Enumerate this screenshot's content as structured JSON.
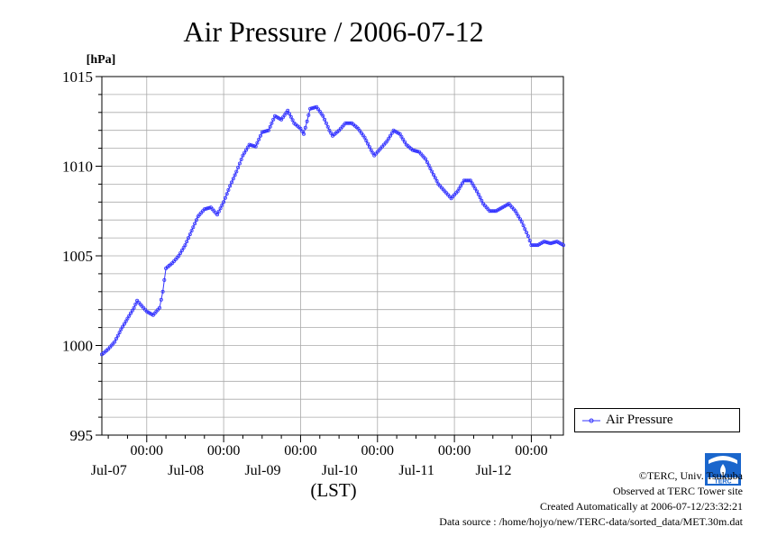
{
  "chart_data": {
    "type": "line",
    "title": "Air Pressure / 2006-07-12",
    "ylabel": "[hPa]",
    "xlabel": "(LST)",
    "ylim": [
      995,
      1015
    ],
    "yticks": [
      995,
      1000,
      1005,
      1010,
      1015
    ],
    "xlim": [
      "2006-07-06 10:00",
      "2006-07-12 10:00"
    ],
    "xticks": [
      {
        "time": "00:00",
        "date": "Jul-07"
      },
      {
        "time": "00:00",
        "date": "Jul-08"
      },
      {
        "time": "00:00",
        "date": "Jul-09"
      },
      {
        "time": "00:00",
        "date": "Jul-10"
      },
      {
        "time": "00:00",
        "date": "Jul-11"
      },
      {
        "time": "00:00",
        "date": "Jul-12"
      }
    ],
    "grid": true,
    "legend_position": "bottom-right, outside plot",
    "series": [
      {
        "name": "Air Pressure",
        "color": "#3333ff",
        "points": [
          [
            "2006-07-06 10:00",
            999.5
          ],
          [
            "2006-07-06 12:00",
            999.8
          ],
          [
            "2006-07-06 14:00",
            1000.2
          ],
          [
            "2006-07-06 16:00",
            1000.9
          ],
          [
            "2006-07-06 18:00",
            1001.5
          ],
          [
            "2006-07-06 20:00",
            1002.1
          ],
          [
            "2006-07-06 21:00",
            1002.5
          ],
          [
            "2006-07-06 22:00",
            1002.3
          ],
          [
            "2006-07-07 00:00",
            1001.9
          ],
          [
            "2006-07-07 02:00",
            1001.7
          ],
          [
            "2006-07-07 04:00",
            1002.1
          ],
          [
            "2006-07-07 05:00",
            1003.0
          ],
          [
            "2006-07-07 06:00",
            1004.3
          ],
          [
            "2006-07-07 08:00",
            1004.6
          ],
          [
            "2006-07-07 10:00",
            1005.0
          ],
          [
            "2006-07-07 12:00",
            1005.6
          ],
          [
            "2006-07-07 14:00",
            1006.4
          ],
          [
            "2006-07-07 16:00",
            1007.2
          ],
          [
            "2006-07-07 18:00",
            1007.6
          ],
          [
            "2006-07-07 20:00",
            1007.7
          ],
          [
            "2006-07-07 22:00",
            1007.3
          ],
          [
            "2006-07-08 00:00",
            1008.0
          ],
          [
            "2006-07-08 02:00",
            1008.9
          ],
          [
            "2006-07-08 04:00",
            1009.7
          ],
          [
            "2006-07-08 06:00",
            1010.6
          ],
          [
            "2006-07-08 08:00",
            1011.2
          ],
          [
            "2006-07-08 10:00",
            1011.1
          ],
          [
            "2006-07-08 12:00",
            1011.9
          ],
          [
            "2006-07-08 14:00",
            1012.0
          ],
          [
            "2006-07-08 16:00",
            1012.8
          ],
          [
            "2006-07-08 18:00",
            1012.6
          ],
          [
            "2006-07-08 20:00",
            1013.1
          ],
          [
            "2006-07-08 22:00",
            1012.4
          ],
          [
            "2006-07-09 00:00",
            1012.1
          ],
          [
            "2006-07-09 01:00",
            1011.8
          ],
          [
            "2006-07-09 02:00",
            1012.5
          ],
          [
            "2006-07-09 03:00",
            1013.2
          ],
          [
            "2006-07-09 05:00",
            1013.3
          ],
          [
            "2006-07-09 07:00",
            1012.8
          ],
          [
            "2006-07-09 09:00",
            1012.0
          ],
          [
            "2006-07-09 10:00",
            1011.7
          ],
          [
            "2006-07-09 12:00",
            1012.0
          ],
          [
            "2006-07-09 14:00",
            1012.4
          ],
          [
            "2006-07-09 16:00",
            1012.4
          ],
          [
            "2006-07-09 18:00",
            1012.1
          ],
          [
            "2006-07-09 20:00",
            1011.6
          ],
          [
            "2006-07-09 22:00",
            1010.9
          ],
          [
            "2006-07-09 23:00",
            1010.6
          ],
          [
            "2006-07-10 01:00",
            1011.0
          ],
          [
            "2006-07-10 03:00",
            1011.4
          ],
          [
            "2006-07-10 05:00",
            1012.0
          ],
          [
            "2006-07-10 07:00",
            1011.8
          ],
          [
            "2006-07-10 09:00",
            1011.2
          ],
          [
            "2006-07-10 11:00",
            1010.9
          ],
          [
            "2006-07-10 13:00",
            1010.8
          ],
          [
            "2006-07-10 15:00",
            1010.4
          ],
          [
            "2006-07-10 17:00",
            1009.7
          ],
          [
            "2006-07-10 19:00",
            1009.0
          ],
          [
            "2006-07-10 21:00",
            1008.6
          ],
          [
            "2006-07-10 23:00",
            1008.2
          ],
          [
            "2006-07-11 01:00",
            1008.6
          ],
          [
            "2006-07-11 03:00",
            1009.2
          ],
          [
            "2006-07-11 05:00",
            1009.2
          ],
          [
            "2006-07-11 07:00",
            1008.6
          ],
          [
            "2006-07-11 09:00",
            1007.9
          ],
          [
            "2006-07-11 11:00",
            1007.5
          ],
          [
            "2006-07-11 13:00",
            1007.5
          ],
          [
            "2006-07-11 15:00",
            1007.7
          ],
          [
            "2006-07-11 17:00",
            1007.9
          ],
          [
            "2006-07-11 19:00",
            1007.5
          ],
          [
            "2006-07-11 21:00",
            1006.9
          ],
          [
            "2006-07-11 23:00",
            1006.1
          ],
          [
            "2006-07-12 00:00",
            1005.6
          ],
          [
            "2006-07-12 02:00",
            1005.6
          ],
          [
            "2006-07-12 04:00",
            1005.8
          ],
          [
            "2006-07-12 06:00",
            1005.7
          ],
          [
            "2006-07-12 08:00",
            1005.8
          ],
          [
            "2006-07-12 10:00",
            1005.6
          ]
        ]
      }
    ]
  },
  "footer": {
    "copyright": "©TERC, Univ. Tsukuba",
    "observed": "Observed at TERC Tower site",
    "created": "Created Automatically at 2006-07-12/23:32:21",
    "source": "Data source : /home/hojyo/new/TERC-data/sorted_data/MET.30m.dat"
  },
  "logo": {
    "text": "TERC",
    "color": "#1a66cc"
  }
}
